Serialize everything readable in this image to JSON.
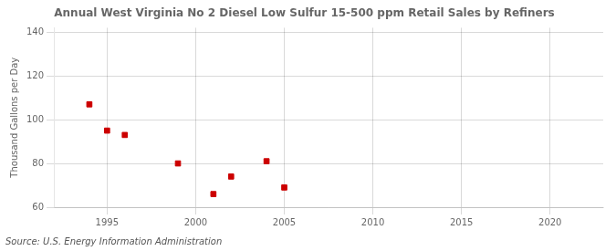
{
  "chart_data": {
    "type": "scatter",
    "title": "Annual West Virginia No 2 Diesel Low Sulfur 15-500 ppm Retail Sales by Refiners",
    "ylabel": "Thousand Gallons per Day",
    "source": "Source: U.S. Energy Information Administration",
    "x": [
      1994,
      1995,
      1996,
      1999,
      2001,
      2002,
      2004,
      2005
    ],
    "values": [
      107,
      95,
      93,
      80,
      66,
      74,
      81,
      69
    ],
    "xlim": [
      1992,
      2023
    ],
    "ylim": [
      60,
      142
    ],
    "xticks": [
      1995,
      2000,
      2005,
      2010,
      2015,
      2020
    ],
    "yticks": [
      60,
      80,
      100,
      120,
      140
    ],
    "color": "#cc0000",
    "marker": "square",
    "grid": true
  }
}
